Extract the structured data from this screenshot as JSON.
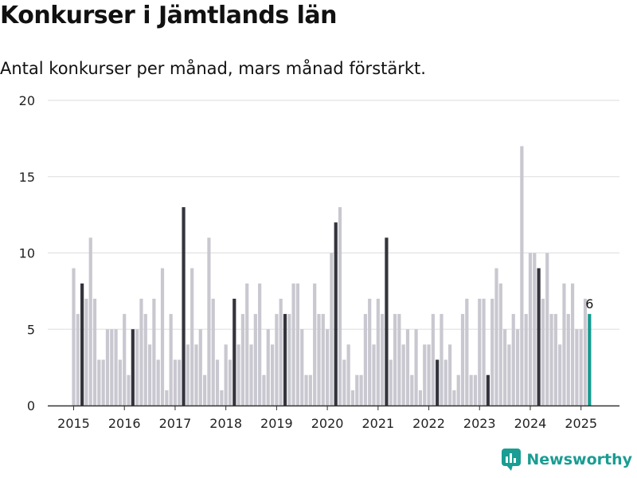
{
  "header": {
    "title": "Konkurser i Jämtlands län",
    "subtitle": "Antal konkurser per månad, mars månad förstärkt."
  },
  "brand": {
    "name": "Newsworthy"
  },
  "colors": {
    "bar": "#c9c8d0",
    "march": "#34343d",
    "current": "#149b90",
    "grid": "#dddddd",
    "axis": "#333333",
    "brand": "#1a9d92"
  },
  "chart_data": {
    "type": "bar",
    "title": "Konkurser i Jämtlands län",
    "subtitle": "Antal konkurser per månad, mars månad förstärkt.",
    "xlabel": "",
    "ylabel": "",
    "ylim": [
      0,
      20
    ],
    "yticks": [
      0,
      5,
      10,
      15,
      20
    ],
    "xticks": [
      "2015",
      "2016",
      "2017",
      "2018",
      "2019",
      "2020",
      "2021",
      "2022",
      "2023",
      "2024",
      "2025"
    ],
    "grid": true,
    "start": "2015-01",
    "highlight_month": 3,
    "highlight_label": "6",
    "values": [
      9,
      6,
      8,
      7,
      11,
      7,
      3,
      3,
      5,
      5,
      5,
      3,
      6,
      2,
      5,
      5,
      7,
      6,
      4,
      7,
      3,
      9,
      1,
      6,
      3,
      3,
      13,
      4,
      9,
      4,
      5,
      2,
      11,
      7,
      3,
      1,
      4,
      3,
      7,
      4,
      6,
      8,
      4,
      6,
      8,
      2,
      5,
      4,
      6,
      7,
      6,
      6,
      8,
      8,
      5,
      2,
      2,
      8,
      6,
      6,
      5,
      10,
      12,
      13,
      3,
      4,
      1,
      2,
      2,
      6,
      7,
      4,
      7,
      6,
      11,
      3,
      6,
      6,
      4,
      5,
      2,
      5,
      1,
      4,
      4,
      6,
      3,
      6,
      3,
      4,
      1,
      2,
      6,
      7,
      2,
      2,
      7,
      7,
      2,
      7,
      9,
      8,
      5,
      4,
      6,
      5,
      17,
      6,
      10,
      10,
      9,
      7,
      10,
      6,
      6,
      4,
      8,
      6,
      8,
      5,
      5,
      7,
      6
    ]
  }
}
